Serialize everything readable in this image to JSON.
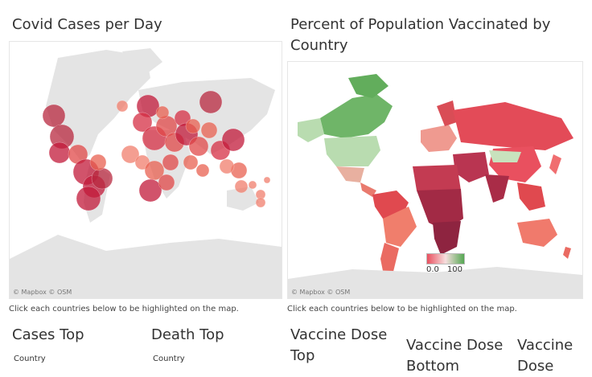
{
  "left_panel": {
    "title": "Covid Cases per Day",
    "attribution": "© Mapbox  © OSM",
    "hint": "Click each countries below to be highlighted on the map."
  },
  "right_panel": {
    "title_line1": "Percent of Population Vaccinated by",
    "title_line2": "Country",
    "attribution": "© Mapbox  © OSM",
    "hint": "Click each countries below to be highlighted on the map.",
    "legend": {
      "min_label": "0.0",
      "max_label": "100"
    }
  },
  "sections": {
    "cases_top": "Cases Top",
    "death_top": "Death Top",
    "vaccine_dose_top_1": "Vaccine Dose",
    "vaccine_dose_top_2": "Top",
    "vaccine_dose_bottom_1": "Vaccine Dose",
    "vaccine_dose_bottom_2": "Bottom",
    "vaccine_dose_3_1": "Vaccine",
    "vaccine_dose_3_2": "Dose"
  },
  "column_headers": {
    "cases_country": "Country",
    "death_country": "Country"
  },
  "colors": {
    "bubble": "#c21a3a",
    "land_gray": "#e4e4e4",
    "choropleth_low": "#e9505f",
    "choropleth_high": "#55a853"
  }
}
